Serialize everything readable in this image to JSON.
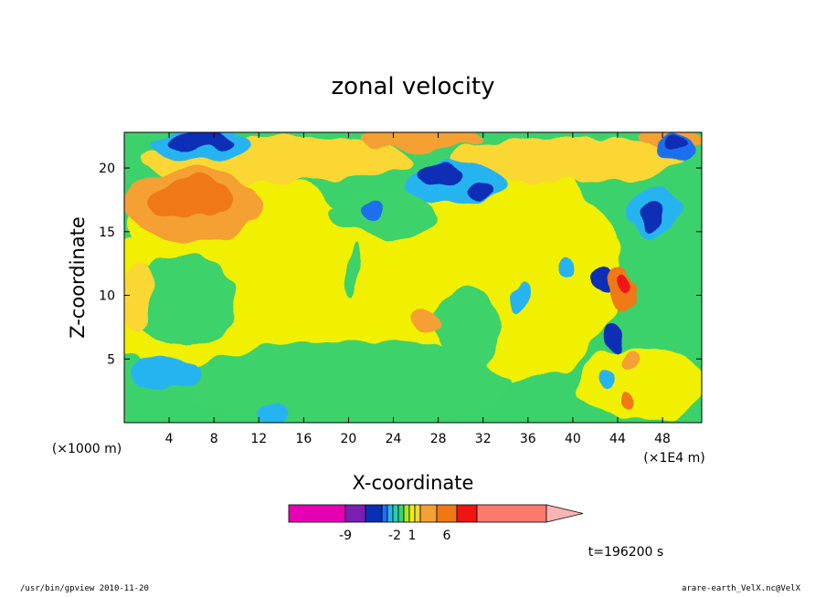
{
  "chart_data": {
    "type": "heatmap",
    "title": "zonal velocity",
    "xlabel": "X-coordinate",
    "ylabel": "Z-coordinate",
    "x_unit_left": "(×1000 m)",
    "x_unit_right": "(×1E4 m)",
    "x_ticks": [
      "4",
      "8",
      "12",
      "16",
      "20",
      "24",
      "28",
      "32",
      "36",
      "40",
      "44",
      "48"
    ],
    "y_ticks": [
      "5",
      "10",
      "15",
      "20"
    ],
    "xlim": [
      0,
      51.5
    ],
    "ylim": [
      0,
      22.8
    ],
    "grid": false,
    "colorbar": {
      "colors": [
        "#e600b4",
        "#7b1fb3",
        "#0a2fb5",
        "#1f6ff0",
        "#26b4f0",
        "#20d2b0",
        "#3cd26b",
        "#a5e630",
        "#f0f000",
        "#fad732",
        "#f5a032",
        "#f07814",
        "#f01414",
        "#fa7b6e",
        "#fab4b4"
      ],
      "tick_labels": [
        "-9",
        "-2",
        "1",
        "6"
      ]
    },
    "time_label": "t=196200 s"
  },
  "footer": {
    "left": "/usr/bin/gpview   2010-11-20",
    "right": "arare-earth_VelX.nc@VelX"
  }
}
